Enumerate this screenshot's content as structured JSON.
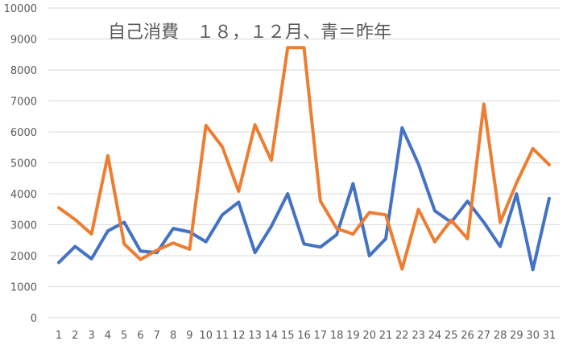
{
  "chart_data": {
    "type": "line",
    "title": "自己消費　１８，１２月、青＝昨年",
    "xlabel": "",
    "ylabel": "",
    "ylim": [
      0,
      10000
    ],
    "yticks": [
      0,
      1000,
      2000,
      3000,
      4000,
      5000,
      6000,
      7000,
      8000,
      9000,
      10000
    ],
    "grid": true,
    "legend": "none",
    "categories": [
      "1",
      "2",
      "3",
      "4",
      "5",
      "6",
      "7",
      "8",
      "9",
      "10",
      "11",
      "12",
      "13",
      "14",
      "15",
      "16",
      "17",
      "18",
      "19",
      "20",
      "21",
      "22",
      "23",
      "24",
      "25",
      "26",
      "27",
      "28",
      "29",
      "30",
      "31"
    ],
    "series": [
      {
        "color": "#4472c4",
        "values": [
          1780,
          2300,
          1900,
          2800,
          3080,
          2150,
          2100,
          2880,
          2770,
          2450,
          3320,
          3730,
          2100,
          2950,
          4000,
          2380,
          2280,
          2680,
          4330,
          2000,
          2550,
          6130,
          4960,
          3450,
          3080,
          3760,
          3080,
          2300,
          4000,
          1550,
          3850
        ]
      },
      {
        "color": "#ed7d31",
        "values": [
          3550,
          3170,
          2700,
          5230,
          2380,
          1880,
          2180,
          2410,
          2210,
          6210,
          5520,
          4080,
          6230,
          5080,
          8720,
          8720,
          3770,
          2880,
          2700,
          3400,
          3320,
          1570,
          3500,
          2450,
          3150,
          2550,
          6900,
          3080,
          4350,
          5460,
          4940
        ]
      }
    ]
  }
}
